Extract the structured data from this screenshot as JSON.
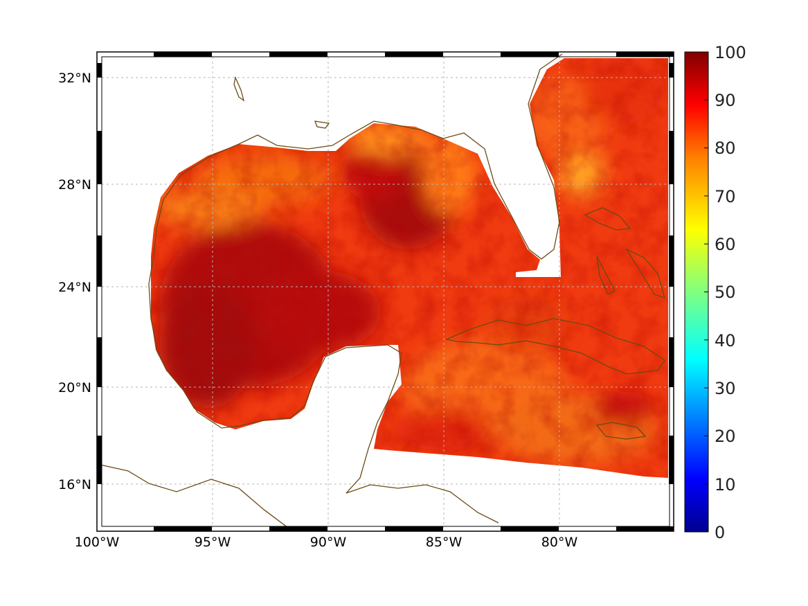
{
  "map": {
    "lon_range": [
      -100,
      -75
    ],
    "lat_range": [
      14.25,
      32.75
    ],
    "projection": "mercator-like rectangular",
    "frame_style": "alternating black/white border",
    "grid": true,
    "lon_ticks": [
      {
        "value": -100,
        "label": "100°W"
      },
      {
        "value": -95,
        "label": "95°W"
      },
      {
        "value": -90,
        "label": "90°W"
      },
      {
        "value": -85,
        "label": "85°W"
      },
      {
        "value": -80,
        "label": "80°W"
      }
    ],
    "lat_ticks": [
      {
        "value": 32,
        "label": "32°N"
      },
      {
        "value": 28,
        "label": "28°N"
      },
      {
        "value": 24,
        "label": "24°N"
      },
      {
        "value": 20,
        "label": "20°N"
      },
      {
        "value": 16,
        "label": "16°N"
      }
    ],
    "coastline_color": "#6b4a12",
    "land_color": "#ffffff"
  },
  "colorbar": {
    "colormap": "jet",
    "min": 0,
    "max": 100,
    "ticks": [
      {
        "value": 100,
        "label": "100"
      },
      {
        "value": 90,
        "label": "90"
      },
      {
        "value": 80,
        "label": "80"
      },
      {
        "value": 70,
        "label": "70"
      },
      {
        "value": 60,
        "label": "60"
      },
      {
        "value": 50,
        "label": "50"
      },
      {
        "value": 40,
        "label": "40"
      },
      {
        "value": 30,
        "label": "30"
      },
      {
        "value": 20,
        "label": "20"
      },
      {
        "value": 10,
        "label": "10"
      },
      {
        "value": 0,
        "label": "0"
      }
    ],
    "stops": [
      "#00008f",
      "#0000ff",
      "#0080ff",
      "#00ffff",
      "#80ff80",
      "#ffff00",
      "#ff8000",
      "#ff0000",
      "#800000"
    ]
  },
  "field": {
    "dominant_range": [
      78,
      97
    ],
    "high_regions": [
      "western Gulf",
      "central Gulf",
      "Loop Current area"
    ],
    "low_regions": [
      "northern Gulf near Mississippi delta",
      "off NE Florida coast"
    ]
  }
}
